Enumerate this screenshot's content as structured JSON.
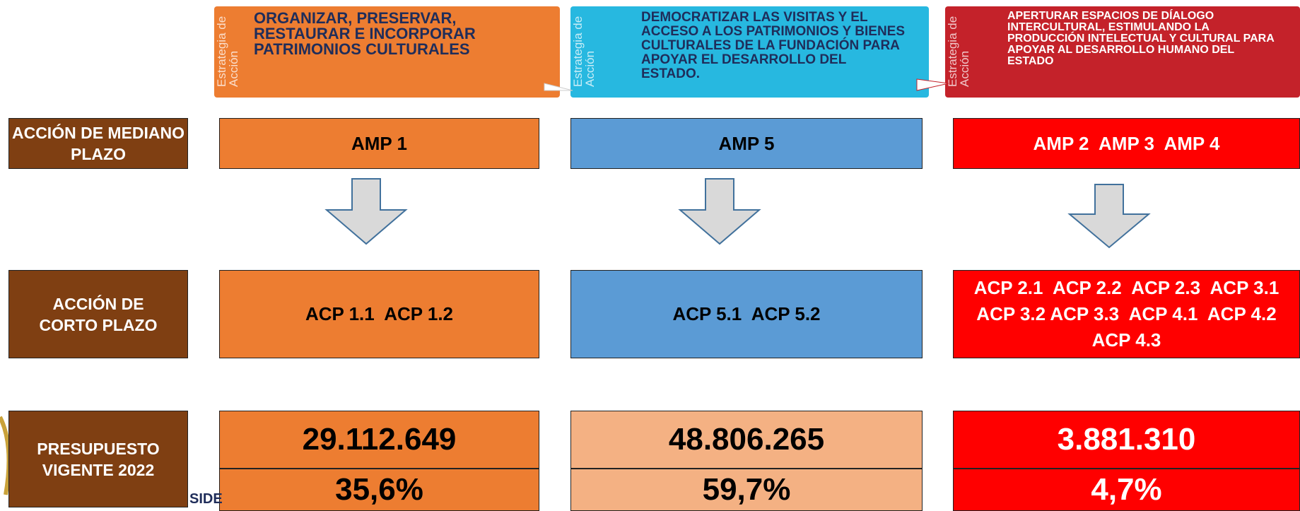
{
  "strategies": [
    {
      "tag": "Estrategia de Acción",
      "text": "ORGANIZAR, PRESERVAR, RESTAURAR E INCORPORAR PATRIMONIOS CULTURALES"
    },
    {
      "tag": "Estrategia de Acción",
      "text": "DEMOCRATIZAR LAS VISITAS Y EL ACCESO A LOS PATRIMONIOS Y BIENES CULTURALES DE LA FUNDACIÓN PARA APOYAR EL DESARROLLO DEL ESTADO."
    },
    {
      "tag": "Estrategia de Acción",
      "text": "APERTURAR ESPACIOS DE DÍALOGO INTERCULTURAL, ESTIMULANDO LA PRODUCCIÓN INTELECTUAL Y CULTURAL PARA APOYAR AL DESARROLLO HUMANO DEL ESTADO"
    }
  ],
  "row_labels": [
    "ACCIÓN DE MEDIANO PLAZO",
    "ACCIÓN DE CORTO PLAZO",
    "PRESUPUESTO VIGENTE 2022"
  ],
  "columns": [
    {
      "amp": "AMP 1",
      "acp": "ACP 1.1  ACP 1.2",
      "budget": "29.112.649",
      "percent": "35,6%"
    },
    {
      "amp": "AMP 5",
      "acp": "ACP 5.1  ACP 5.2",
      "budget": "48.806.265",
      "percent": "59,7%"
    },
    {
      "amp": "AMP 2  AMP 3  AMP 4",
      "acp": "ACP 2.1  ACP 2.2  ACP 2.3  ACP 3.1  ACP 3.2 ACP 3.3  ACP 4.1  ACP 4.2  ACP 4.3",
      "budget": "3.881.310",
      "percent": "4,7%"
    }
  ],
  "footer_fragment": "SIDE"
}
